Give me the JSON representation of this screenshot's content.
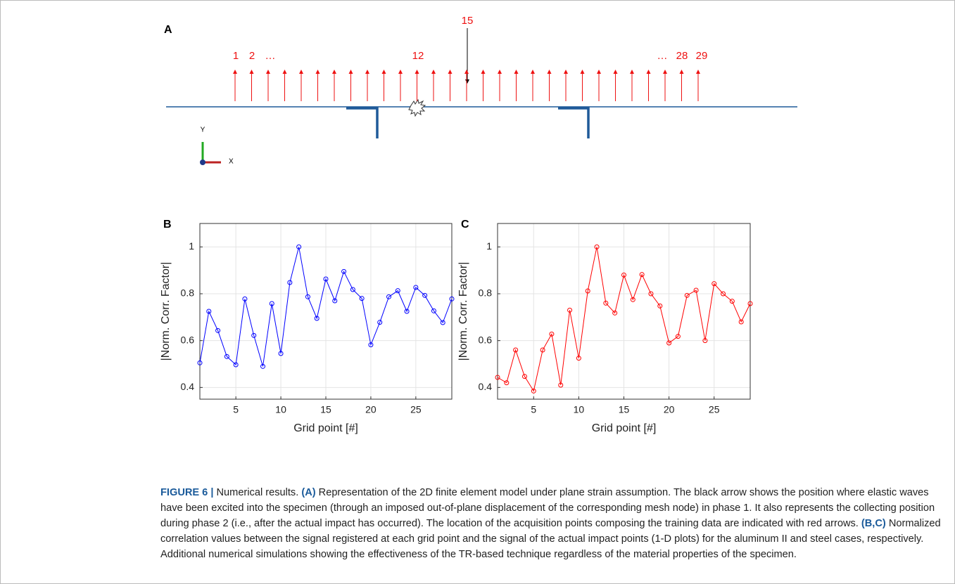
{
  "panel_a": {
    "label": "A",
    "impact_label": "15",
    "arrow_labels": [
      "1",
      "2",
      "…",
      "12",
      "…",
      "28",
      "29"
    ],
    "axis_y": "Y",
    "axis_x": "X"
  },
  "chart_data": [
    {
      "type": "line",
      "label": "B",
      "xlabel": "Grid point [#]",
      "ylabel": "|Norm. Corr. Factor|",
      "color": "#0000ff",
      "marker": "circle",
      "grid": true,
      "x": [
        1,
        2,
        3,
        4,
        5,
        6,
        7,
        8,
        9,
        10,
        11,
        12,
        13,
        14,
        15,
        16,
        17,
        18,
        19,
        20,
        21,
        22,
        23,
        24,
        25,
        26,
        27,
        28,
        29
      ],
      "values": [
        0.505,
        0.725,
        0.643,
        0.532,
        0.497,
        0.778,
        0.622,
        0.49,
        0.758,
        0.545,
        0.848,
        1.0,
        0.787,
        0.695,
        0.863,
        0.77,
        0.895,
        0.818,
        0.78,
        0.582,
        0.678,
        0.787,
        0.813,
        0.725,
        0.827,
        0.793,
        0.727,
        0.677,
        0.778
      ],
      "xlim": [
        1,
        29
      ],
      "ylim": [
        0.35,
        1.1
      ],
      "xticks": [
        5,
        10,
        15,
        20,
        25
      ],
      "yticks": [
        0.4,
        0.6,
        0.8,
        1
      ]
    },
    {
      "type": "line",
      "label": "C",
      "xlabel": "Grid point [#]",
      "ylabel": "|Norm. Corr. Factor|",
      "color": "#ff0000",
      "marker": "circle",
      "grid": true,
      "x": [
        1,
        2,
        3,
        4,
        5,
        6,
        7,
        8,
        9,
        10,
        11,
        12,
        13,
        14,
        15,
        16,
        17,
        18,
        19,
        20,
        21,
        22,
        23,
        24,
        25,
        26,
        27,
        28,
        29
      ],
      "values": [
        0.443,
        0.42,
        0.56,
        0.447,
        0.385,
        0.56,
        0.628,
        0.41,
        0.73,
        0.525,
        0.812,
        1.0,
        0.76,
        0.718,
        0.88,
        0.775,
        0.882,
        0.8,
        0.748,
        0.59,
        0.618,
        0.793,
        0.815,
        0.6,
        0.843,
        0.8,
        0.768,
        0.68,
        0.758
      ],
      "xlim": [
        1,
        29
      ],
      "ylim": [
        0.35,
        1.1
      ],
      "xticks": [
        5,
        10,
        15,
        20,
        25
      ],
      "yticks": [
        0.4,
        0.6,
        0.8,
        1
      ]
    }
  ],
  "caption": [
    {
      "text": "FIGURE 6 |",
      "bold": true
    },
    {
      "text": " Numerical results. ",
      "bold": false
    },
    {
      "text": "(A)",
      "bold": true
    },
    {
      "text": " Representation of the 2D finite element model under plane strain assumption. The black arrow shows the position where elastic waves have been excited into the specimen (through an imposed out-of-plane displacement of the corresponding mesh node) in phase 1. It also represents the collecting position during phase 2 (i.e., after the actual impact has occurred). The location of the acquisition points composing the training data are indicated with red arrows. ",
      "bold": false
    },
    {
      "text": "(B,C)",
      "bold": true
    },
    {
      "text": " Normalized correlation values between the signal registered at each grid point and the signal of the actual impact points (1-D plots) for the aluminum II and steel cases, respectively. Additional numerical simulations showing the effectiveness of the TR-based technique regardless of the material properties of the specimen.",
      "bold": false
    }
  ]
}
